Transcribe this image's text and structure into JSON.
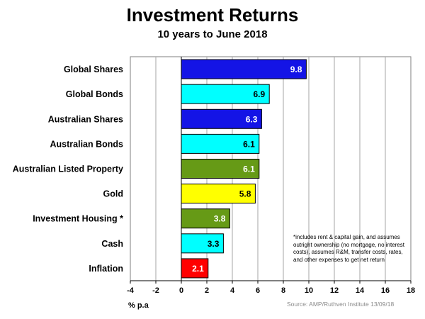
{
  "chart_data": {
    "type": "bar",
    "orientation": "horizontal",
    "title": "Investment Returns",
    "subtitle": "10 years to June 2018",
    "xlabel": "% p.a",
    "ylabel": "",
    "categories": [
      "Global Shares",
      "Global Bonds",
      "Australian Shares",
      "Australian Bonds",
      "Australian Listed Property",
      "Gold",
      "Investment Housing *",
      "Cash",
      "Inflation"
    ],
    "values": [
      9.8,
      6.9,
      6.3,
      6.1,
      6.1,
      5.8,
      3.8,
      3.3,
      2.1
    ],
    "value_labels": [
      "9.8",
      "6.9",
      "6.3",
      "6.1",
      "6.1",
      "5.8",
      "3.8",
      "3.3",
      "2.1"
    ],
    "colors": [
      "#1414e6",
      "#00ffff",
      "#1414e6",
      "#00ffff",
      "#669a16",
      "#ffff00",
      "#669a16",
      "#00ffff",
      "#ff0000"
    ],
    "label_colors": [
      "#ffffff",
      "#000000",
      "#ffffff",
      "#000000",
      "#ffffff",
      "#000000",
      "#ffffff",
      "#000000",
      "#ffffff"
    ],
    "xlim": [
      -4,
      18
    ],
    "xticks": [
      -4,
      -2,
      0,
      2,
      4,
      6,
      8,
      10,
      12,
      14,
      16,
      18
    ],
    "grid": true,
    "legend": "none",
    "footnote": "*includes rent & capital gain, and assumes outright ownership (no mortgage, no interest costs), assumes R&M, transfer costs, rates, and other expenses to get net return",
    "source": "Source: AMP/Ruthven Institute  13/09/18"
  }
}
